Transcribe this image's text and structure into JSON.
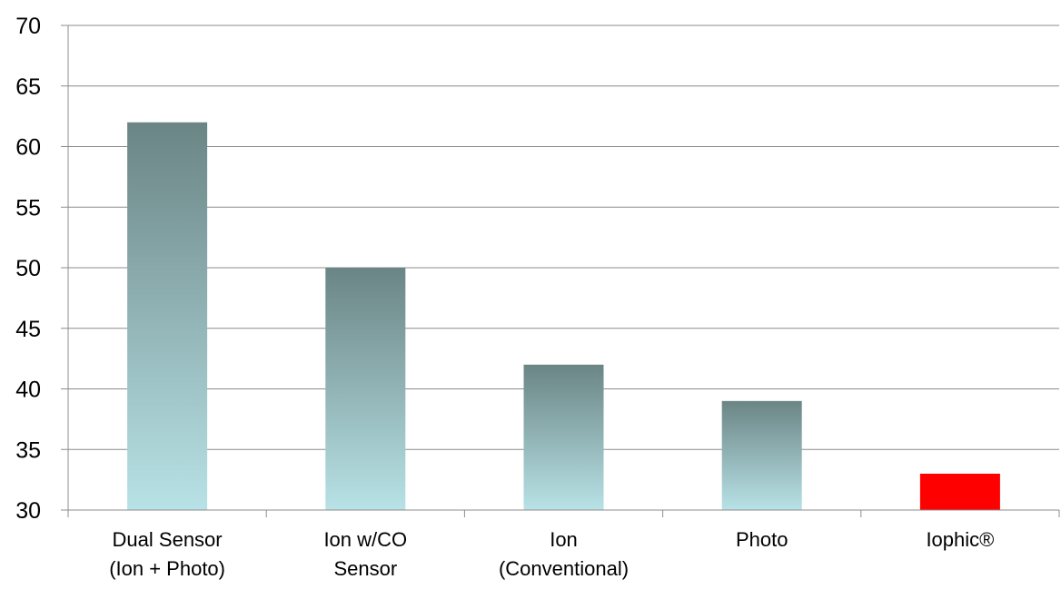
{
  "chart_data": {
    "type": "bar",
    "title": "",
    "xlabel": "",
    "ylabel": "",
    "categories": [
      [
        "Dual Sensor",
        "(Ion + Photo)"
      ],
      [
        "Ion w/CO",
        "Sensor"
      ],
      [
        "Ion",
        "(Conventional)"
      ],
      [
        "Photo"
      ],
      [
        "Iophic®"
      ]
    ],
    "values": [
      62,
      50,
      42,
      39,
      33
    ],
    "ylim": [
      30,
      70
    ],
    "yticks": [
      30,
      35,
      40,
      45,
      50,
      55,
      60,
      65,
      70
    ],
    "grid": true,
    "legend": "none",
    "colors": {
      "bar_gradient_top": "#6b8585",
      "bar_gradient_bottom": "#b8e2e6",
      "highlight_bar": "#ff0000",
      "gridline": "#8c8c8c",
      "axis": "#8c8c8c"
    },
    "highlight_index": 4
  }
}
